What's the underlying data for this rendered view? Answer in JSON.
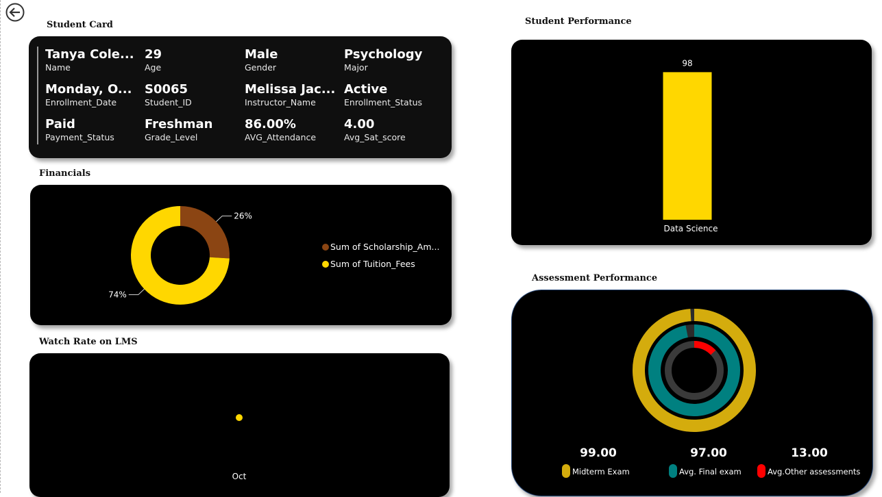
{
  "nav": {
    "back_icon": "arrow-left-circle-icon"
  },
  "titles": {
    "student_card": "Student Card",
    "financials": "Financials",
    "watch_rate": "Watch Rate on LMS",
    "student_performance": "Student Performance",
    "assessment_performance": "Assessment Performance"
  },
  "student_card": {
    "fields": [
      {
        "value": "Tanya Cole...",
        "label": "Name"
      },
      {
        "value": "29",
        "label": "Age"
      },
      {
        "value": "Male",
        "label": "Gender"
      },
      {
        "value": "Psychology",
        "label": "Major"
      },
      {
        "value": "Monday, O...",
        "label": "Enrollment_Date"
      },
      {
        "value": "S0065",
        "label": "Student_ID"
      },
      {
        "value": "Melissa Jac...",
        "label": "Instructor_Name"
      },
      {
        "value": "Active",
        "label": "Enrollment_Status"
      },
      {
        "value": "Paid",
        "label": "Payment_Status"
      },
      {
        "value": "Freshman",
        "label": "Grade_Level"
      },
      {
        "value": "86.00%",
        "label": "AVG_Attendance"
      },
      {
        "value": "4.00",
        "label": "Avg_Sat_score"
      }
    ]
  },
  "chart_data": [
    {
      "id": "financials",
      "type": "pie",
      "variant": "donut",
      "title": "Financials",
      "slices": [
        {
          "name": "Sum of Scholarship_Am...",
          "percent": 26,
          "label": "26%",
          "color": "#8B4513"
        },
        {
          "name": "Sum of Tuition_Fees",
          "percent": 74,
          "label": "74%",
          "color": "#FFD700"
        }
      ]
    },
    {
      "id": "watch_rate",
      "type": "scatter",
      "title": "Watch Rate on LMS",
      "categories": [
        "Oct"
      ],
      "values": [
        1
      ],
      "color": "#FFD700"
    },
    {
      "id": "student_performance",
      "type": "bar",
      "title": "Student Performance",
      "categories": [
        "Data Science"
      ],
      "values": [
        98
      ],
      "data_labels": [
        "98"
      ],
      "ylim": [
        0,
        100
      ],
      "color": "#FFD700"
    },
    {
      "id": "assessment_performance",
      "type": "pie",
      "variant": "radial-rings",
      "title": "Assessment Performance",
      "max": 100,
      "series": [
        {
          "name": "Midterm Exam",
          "value": 99,
          "label": "99.00",
          "color": "#D4AC0D",
          "track": "#2b2b2b"
        },
        {
          "name": "Avg. Final exam",
          "value": 97,
          "label": "97.00",
          "color": "#008080",
          "track": "#2b2b2b"
        },
        {
          "name": "Avg.Other assessments",
          "value": 13,
          "label": "13.00",
          "color": "#FF0000",
          "track": "#3a3a3a"
        }
      ]
    }
  ]
}
